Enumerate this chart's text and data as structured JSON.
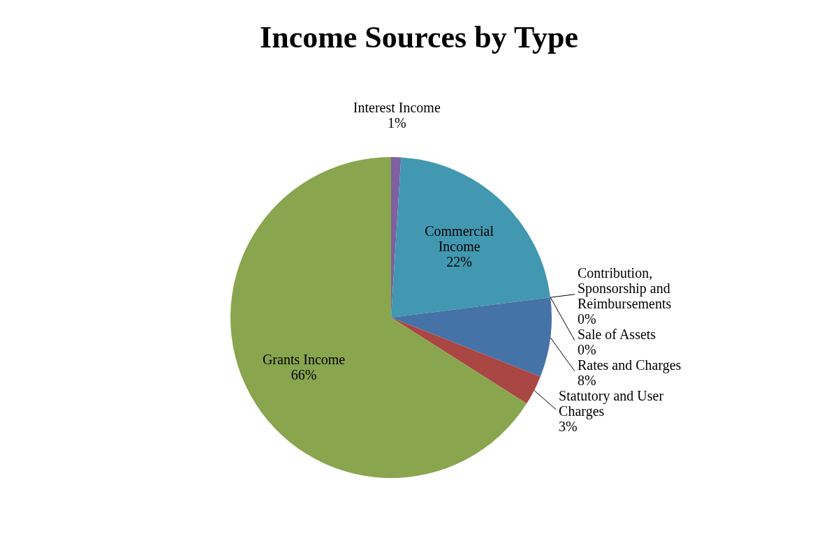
{
  "chart_data": {
    "type": "pie",
    "title": "Income Sources by Type",
    "categories": [
      "Interest Income",
      "Commercial\nIncome",
      "Contribution,\nSponsorship and\nReimbursements",
      "Sale of Assets",
      "Rates and Charges",
      "Statutory and User\nCharges",
      "Grants Income"
    ],
    "values": [
      1,
      22,
      0,
      0,
      8,
      3,
      66
    ],
    "colors": [
      "#7f60a0",
      "#4198b0",
      "#f79646",
      "#a5b8d8",
      "#4572a7",
      "#aa4643",
      "#89a54e"
    ],
    "value_labels": [
      "1%",
      "22%",
      "0%",
      "0%",
      "8%",
      "3%",
      "66%"
    ]
  }
}
